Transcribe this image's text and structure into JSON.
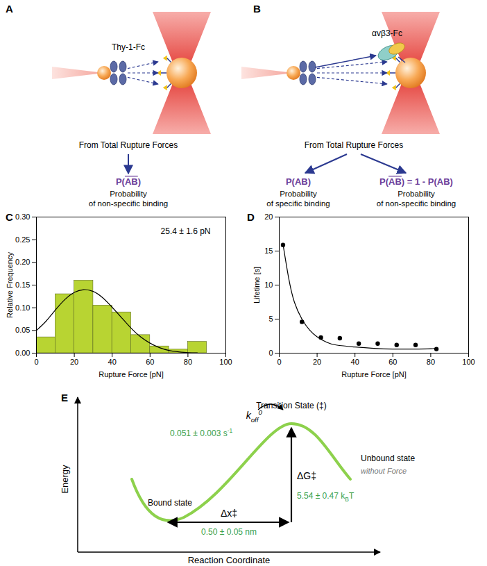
{
  "panels": {
    "A": {
      "letter": "A",
      "protein": "Thy-1-Fc",
      "source": "From Total Rupture Forces",
      "results": [
        {
          "formula": [
            {
              "text": "P("
            },
            {
              "text": "AB",
              "overline": true
            },
            {
              "text": ")"
            }
          ],
          "lines": [
            "Probability",
            "of non-specific binding"
          ]
        }
      ]
    },
    "B": {
      "letter": "B",
      "receptor": "αvβ3-Fc",
      "source": "From Total Rupture Forces",
      "results": [
        {
          "formula": [
            {
              "text": "P(AB)"
            }
          ],
          "lines": [
            "Probability",
            "of specific binding"
          ]
        },
        {
          "formula": [
            {
              "text": "P("
            },
            {
              "text": "AB",
              "overline": true
            },
            {
              "text": ") = 1 - P(AB)"
            }
          ],
          "lines": [
            "Probability",
            "of non-specific binding"
          ]
        }
      ]
    },
    "E": {
      "letter": "E",
      "y_axis": "Energy",
      "x_axis": "Reaction Coordinate",
      "transition": "Transition State (‡)",
      "rate": [
        {
          "text": "k"
        },
        {
          "text": "off",
          "sub": true
        },
        {
          "text": "0",
          "sup": true
        }
      ],
      "rate_value": [
        {
          "text": "0.051 ± 0.003 s"
        },
        {
          "text": "-1",
          "sup": true
        }
      ],
      "bound": "Bound state",
      "unbound": "Unbound state",
      "condition": "without Force",
      "barrier": [
        {
          "text": "ΔG‡"
        }
      ],
      "barrier_value": [
        {
          "text": "5.54 ± 0.47 k"
        },
        {
          "text": "B",
          "sub": true
        },
        {
          "text": "T"
        }
      ],
      "distance": [
        {
          "text": "Δx‡"
        }
      ],
      "distance_value": [
        {
          "text": "0.50 ± 0.05 nm"
        }
      ]
    }
  },
  "chart_data": [
    {
      "panel": "C",
      "type": "histogram",
      "xlabel": "Rupture Force [pN]",
      "ylabel": "Relative Frequency",
      "bins": [
        0,
        10,
        20,
        30,
        40,
        50,
        60,
        70,
        80,
        90
      ],
      "values": [
        0.035,
        0.13,
        0.16,
        0.105,
        0.09,
        0.04,
        0.015,
        0.008,
        0.025
      ],
      "color": "#b8d432",
      "fit": {
        "x": [
          0,
          5,
          10,
          15,
          20,
          25,
          30,
          35,
          40,
          45,
          50,
          55,
          60,
          65,
          70,
          75,
          80,
          85
        ],
        "y": [
          0.05,
          0.07,
          0.095,
          0.118,
          0.134,
          0.14,
          0.136,
          0.122,
          0.101,
          0.078,
          0.055,
          0.036,
          0.022,
          0.012,
          0.006,
          0.003,
          0.001,
          0.0005
        ]
      },
      "annotation": "25.4 ± 1.6 pN",
      "xlim": [
        0,
        100
      ],
      "xticks": [
        0,
        20,
        40,
        60,
        80,
        100
      ],
      "ylim": [
        0,
        0.3
      ],
      "yticks": [
        {
          "value": 0,
          "label": "0.00"
        },
        {
          "value": 0.05,
          "label": "0.05"
        },
        {
          "value": 0.1,
          "label": "0.10"
        },
        {
          "value": 0.15,
          "label": "0.15"
        },
        {
          "value": 0.2,
          "label": "0.20"
        },
        {
          "value": 0.25,
          "label": "0.25"
        },
        {
          "value": 0.3,
          "label": "0.30"
        }
      ],
      "grid": false
    },
    {
      "panel": "D",
      "type": "scatter",
      "xlabel": "Rupture Force [pN]",
      "ylabel": "Lifetime [s]",
      "x": [
        2,
        12,
        22,
        32,
        42,
        52,
        62,
        72,
        83
      ],
      "values": [
        15.9,
        4.6,
        2.3,
        2.2,
        1.4,
        1.4,
        1.2,
        1.2,
        0.6
      ],
      "color": "#000000",
      "fit": {
        "x": [
          2,
          5,
          8,
          12,
          16,
          20,
          25,
          30,
          40,
          50,
          60,
          70,
          80,
          83
        ],
        "y": [
          16,
          11,
          7.5,
          5,
          3.4,
          2.4,
          1.6,
          1.2,
          0.9,
          0.7,
          0.6,
          0.6,
          0.65,
          0.8
        ]
      },
      "xlim": [
        0,
        100
      ],
      "xticks": [
        0,
        20,
        40,
        60,
        80,
        100
      ],
      "ylim": [
        0,
        20
      ],
      "yticks": [
        0,
        5,
        10,
        15,
        20
      ],
      "grid": false
    }
  ]
}
